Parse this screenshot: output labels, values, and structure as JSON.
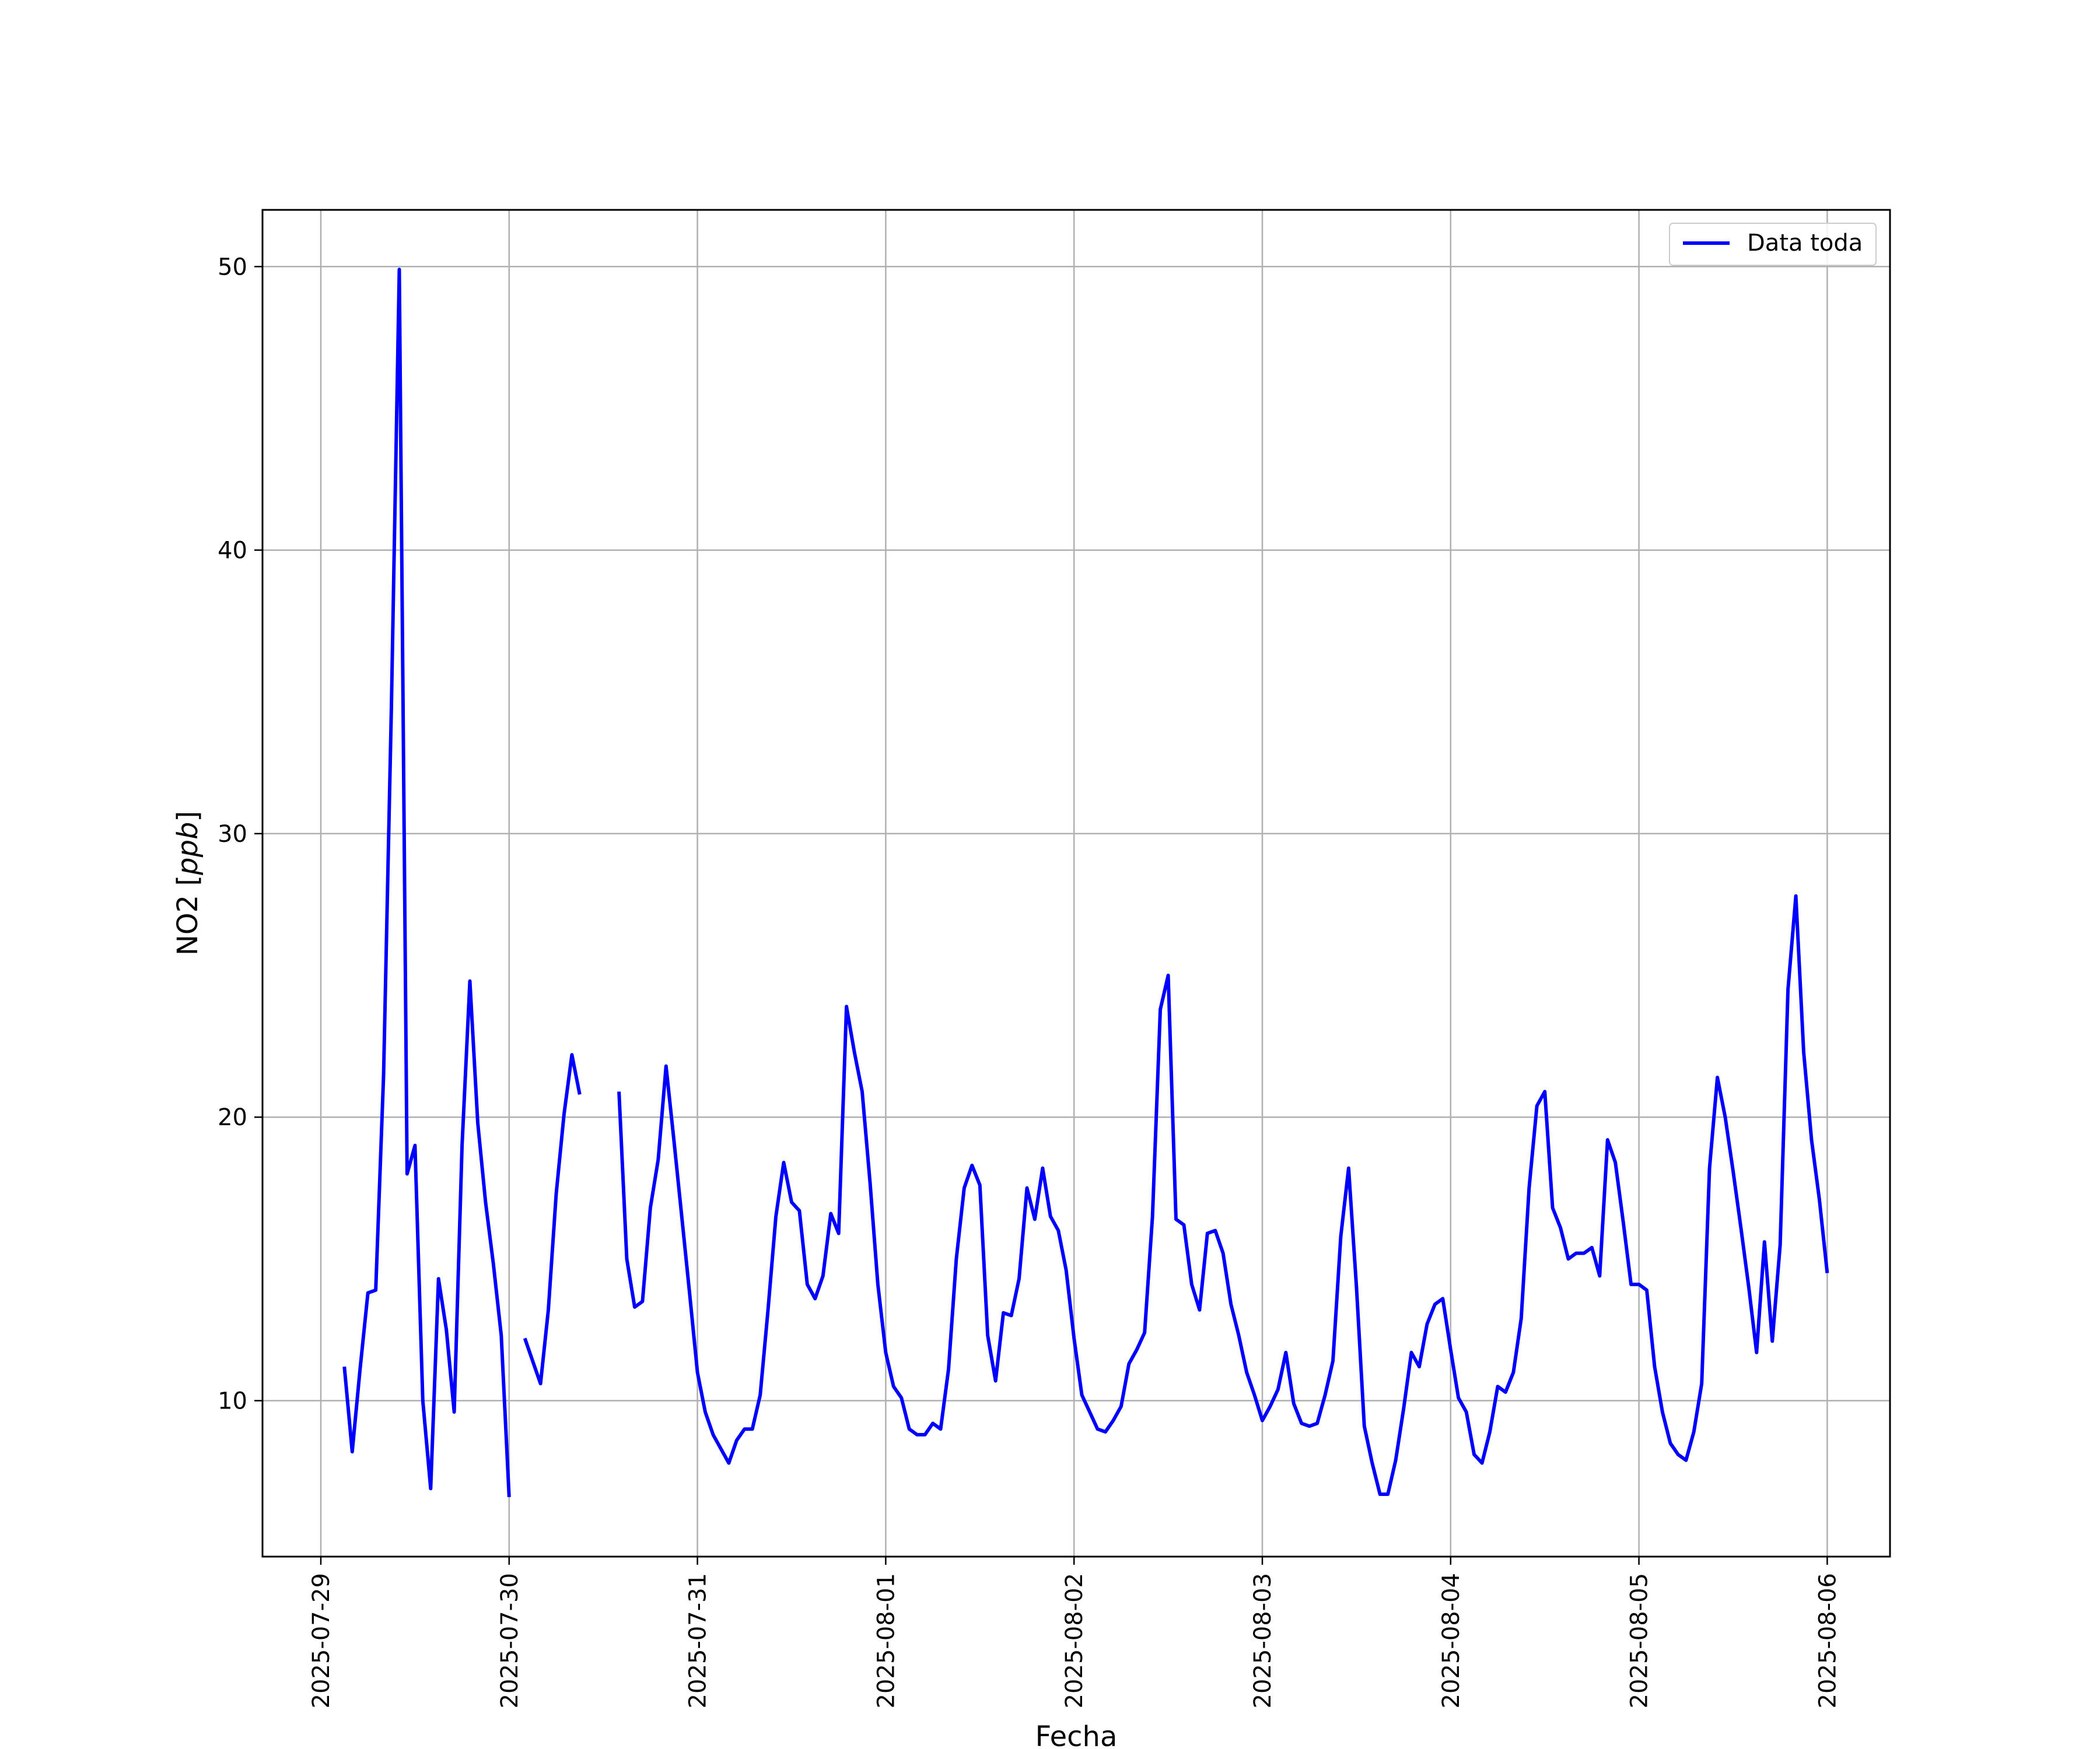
{
  "chart_data": {
    "type": "line",
    "title": "",
    "xlabel": "Fecha",
    "ylabel": "NO2",
    "ylabel_unit": "ppb",
    "grid": true,
    "legend_position": "top-right",
    "xlim": [
      "2025-07-28 16:34",
      "2025-08-06 08:00"
    ],
    "ylim": [
      4.5,
      52
    ],
    "x_ticks": [
      "2025-07-29",
      "2025-07-30",
      "2025-07-31",
      "2025-08-01",
      "2025-08-02",
      "2025-08-03",
      "2025-08-04",
      "2025-08-05",
      "2025-08-06"
    ],
    "y_ticks": [
      10,
      20,
      30,
      40,
      50
    ],
    "series": [
      {
        "name": "Data toda",
        "color": "#0000ff",
        "points": [
          [
            "2025-07-29 03:00",
            11.2
          ],
          [
            "2025-07-29 04:00",
            8.2
          ],
          [
            "2025-07-29 05:00",
            11.1
          ],
          [
            "2025-07-29 06:00",
            13.8
          ],
          [
            "2025-07-29 07:00",
            13.9
          ],
          [
            "2025-07-29 08:00",
            21.5
          ],
          [
            "2025-07-29 09:00",
            34.5
          ],
          [
            "2025-07-29 10:00",
            49.9
          ],
          [
            "2025-07-29 11:00",
            18.0
          ],
          [
            "2025-07-29 12:00",
            19.0
          ],
          [
            "2025-07-29 13:00",
            10.0
          ],
          [
            "2025-07-29 14:00",
            6.9
          ],
          [
            "2025-07-29 15:00",
            14.3
          ],
          [
            "2025-07-29 16:00",
            12.5
          ],
          [
            "2025-07-29 17:00",
            9.6
          ],
          [
            "2025-07-29 18:00",
            19.0
          ],
          [
            "2025-07-29 19:00",
            24.8
          ],
          [
            "2025-07-29 20:00",
            19.8
          ],
          [
            "2025-07-29 21:00",
            17.0
          ],
          [
            "2025-07-29 22:00",
            14.8
          ],
          [
            "2025-07-29 23:00",
            12.3
          ],
          [
            "2025-07-30 00:00",
            6.6
          ],
          null,
          [
            "2025-07-30 02:00",
            12.2
          ],
          [
            "2025-07-30 03:00",
            11.4
          ],
          [
            "2025-07-30 04:00",
            10.6
          ],
          [
            "2025-07-30 05:00",
            13.2
          ],
          [
            "2025-07-30 06:00",
            17.3
          ],
          [
            "2025-07-30 07:00",
            20.1
          ],
          [
            "2025-07-30 08:00",
            22.2
          ],
          [
            "2025-07-30 09:00",
            20.8
          ],
          null,
          [
            "2025-07-30 14:00",
            20.9
          ],
          [
            "2025-07-30 15:00",
            15.0
          ],
          [
            "2025-07-30 16:00",
            13.3
          ],
          [
            "2025-07-30 17:00",
            13.5
          ],
          [
            "2025-07-30 18:00",
            16.8
          ],
          [
            "2025-07-30 19:00",
            18.5
          ],
          [
            "2025-07-30 20:00",
            21.8
          ],
          [
            "2025-07-30 21:00",
            19.2
          ],
          [
            "2025-07-30 22:00",
            16.5
          ],
          [
            "2025-07-30 23:00",
            13.8
          ],
          [
            "2025-07-31 00:00",
            11.0
          ],
          [
            "2025-07-31 01:00",
            9.6
          ],
          [
            "2025-07-31 02:00",
            8.8
          ],
          [
            "2025-07-31 03:00",
            8.3
          ],
          [
            "2025-07-31 04:00",
            7.8
          ],
          [
            "2025-07-31 05:00",
            8.6
          ],
          [
            "2025-07-31 06:00",
            9.0
          ],
          [
            "2025-07-31 07:00",
            9.0
          ],
          [
            "2025-07-31 08:00",
            10.2
          ],
          [
            "2025-07-31 09:00",
            13.2
          ],
          [
            "2025-07-31 10:00",
            16.5
          ],
          [
            "2025-07-31 11:00",
            18.4
          ],
          [
            "2025-07-31 12:00",
            17.0
          ],
          [
            "2025-07-31 13:00",
            16.7
          ],
          [
            "2025-07-31 14:00",
            14.1
          ],
          [
            "2025-07-31 15:00",
            13.6
          ],
          [
            "2025-07-31 16:00",
            14.4
          ],
          [
            "2025-07-31 17:00",
            16.6
          ],
          [
            "2025-07-31 18:00",
            15.9
          ],
          [
            "2025-07-31 19:00",
            23.9
          ],
          [
            "2025-07-31 20:00",
            22.3
          ],
          [
            "2025-07-31 21:00",
            20.9
          ],
          [
            "2025-07-31 22:00",
            17.7
          ],
          [
            "2025-07-31 23:00",
            14.1
          ],
          [
            "2025-08-01 00:00",
            11.7
          ],
          [
            "2025-08-01 01:00",
            10.5
          ],
          [
            "2025-08-01 02:00",
            10.1
          ],
          [
            "2025-08-01 03:00",
            9.0
          ],
          [
            "2025-08-01 04:00",
            8.8
          ],
          [
            "2025-08-01 05:00",
            8.8
          ],
          [
            "2025-08-01 06:00",
            9.2
          ],
          [
            "2025-08-01 07:00",
            9.0
          ],
          [
            "2025-08-01 08:00",
            11.1
          ],
          [
            "2025-08-01 09:00",
            15.0
          ],
          [
            "2025-08-01 10:00",
            17.5
          ],
          [
            "2025-08-01 11:00",
            18.3
          ],
          [
            "2025-08-01 12:00",
            17.6
          ],
          [
            "2025-08-01 13:00",
            12.3
          ],
          [
            "2025-08-01 14:00",
            10.7
          ],
          [
            "2025-08-01 15:00",
            13.1
          ],
          [
            "2025-08-01 16:00",
            13.0
          ],
          [
            "2025-08-01 17:00",
            14.3
          ],
          [
            "2025-08-01 18:00",
            17.5
          ],
          [
            "2025-08-01 19:00",
            16.4
          ],
          [
            "2025-08-01 20:00",
            18.2
          ],
          [
            "2025-08-01 21:00",
            16.5
          ],
          [
            "2025-08-01 22:00",
            16.0
          ],
          [
            "2025-08-01 23:00",
            14.6
          ],
          [
            "2025-08-02 00:00",
            12.2
          ],
          [
            "2025-08-02 01:00",
            10.2
          ],
          [
            "2025-08-02 02:00",
            9.6
          ],
          [
            "2025-08-02 03:00",
            9.0
          ],
          [
            "2025-08-02 04:00",
            8.9
          ],
          [
            "2025-08-02 05:00",
            9.3
          ],
          [
            "2025-08-02 06:00",
            9.8
          ],
          [
            "2025-08-02 07:00",
            11.3
          ],
          [
            "2025-08-02 08:00",
            11.8
          ],
          [
            "2025-08-02 09:00",
            12.4
          ],
          [
            "2025-08-02 10:00",
            16.5
          ],
          [
            "2025-08-02 11:00",
            23.8
          ],
          [
            "2025-08-02 12:00",
            25.0
          ],
          [
            "2025-08-02 13:00",
            16.4
          ],
          [
            "2025-08-02 14:00",
            16.2
          ],
          [
            "2025-08-02 15:00",
            14.1
          ],
          [
            "2025-08-02 16:00",
            13.2
          ],
          [
            "2025-08-02 17:00",
            15.9
          ],
          [
            "2025-08-02 18:00",
            16.0
          ],
          [
            "2025-08-02 19:00",
            15.2
          ],
          [
            "2025-08-02 20:00",
            13.4
          ],
          [
            "2025-08-02 21:00",
            12.3
          ],
          [
            "2025-08-02 22:00",
            11.0
          ],
          [
            "2025-08-02 23:00",
            10.2
          ],
          [
            "2025-08-03 00:00",
            9.3
          ],
          [
            "2025-08-03 01:00",
            9.8
          ],
          [
            "2025-08-03 02:00",
            10.4
          ],
          [
            "2025-08-03 03:00",
            11.7
          ],
          [
            "2025-08-03 04:00",
            9.9
          ],
          [
            "2025-08-03 05:00",
            9.2
          ],
          [
            "2025-08-03 06:00",
            9.1
          ],
          [
            "2025-08-03 07:00",
            9.2
          ],
          [
            "2025-08-03 08:00",
            10.2
          ],
          [
            "2025-08-03 09:00",
            11.4
          ],
          [
            "2025-08-03 10:00",
            15.8
          ],
          [
            "2025-08-03 11:00",
            18.2
          ],
          [
            "2025-08-03 12:00",
            14.0
          ],
          [
            "2025-08-03 13:00",
            9.1
          ],
          [
            "2025-08-03 14:00",
            7.8
          ],
          [
            "2025-08-03 15:00",
            6.7
          ],
          [
            "2025-08-03 16:00",
            6.7
          ],
          [
            "2025-08-03 17:00",
            7.9
          ],
          [
            "2025-08-03 18:00",
            9.7
          ],
          [
            "2025-08-03 19:00",
            11.7
          ],
          [
            "2025-08-03 20:00",
            11.2
          ],
          [
            "2025-08-03 21:00",
            12.7
          ],
          [
            "2025-08-03 22:00",
            13.4
          ],
          [
            "2025-08-03 23:00",
            13.6
          ],
          [
            "2025-08-04 00:00",
            11.8
          ],
          [
            "2025-08-04 01:00",
            10.1
          ],
          [
            "2025-08-04 02:00",
            9.6
          ],
          [
            "2025-08-04 03:00",
            8.1
          ],
          [
            "2025-08-04 04:00",
            7.8
          ],
          [
            "2025-08-04 05:00",
            8.9
          ],
          [
            "2025-08-04 06:00",
            10.5
          ],
          [
            "2025-08-04 07:00",
            10.3
          ],
          [
            "2025-08-04 08:00",
            11.0
          ],
          [
            "2025-08-04 09:00",
            12.9
          ],
          [
            "2025-08-04 10:00",
            17.5
          ],
          [
            "2025-08-04 11:00",
            20.4
          ],
          [
            "2025-08-04 12:00",
            20.9
          ],
          [
            "2025-08-04 13:00",
            16.8
          ],
          [
            "2025-08-04 14:00",
            16.1
          ],
          [
            "2025-08-04 15:00",
            15.0
          ],
          [
            "2025-08-04 16:00",
            15.2
          ],
          [
            "2025-08-04 17:00",
            15.2
          ],
          [
            "2025-08-04 18:00",
            15.4
          ],
          [
            "2025-08-04 19:00",
            14.4
          ],
          [
            "2025-08-04 20:00",
            19.2
          ],
          [
            "2025-08-04 21:00",
            18.4
          ],
          [
            "2025-08-04 22:00",
            16.3
          ],
          [
            "2025-08-04 23:00",
            14.1
          ],
          [
            "2025-08-05 00:00",
            14.1
          ],
          [
            "2025-08-05 01:00",
            13.9
          ],
          [
            "2025-08-05 02:00",
            11.2
          ],
          [
            "2025-08-05 03:00",
            9.6
          ],
          [
            "2025-08-05 04:00",
            8.5
          ],
          [
            "2025-08-05 05:00",
            8.1
          ],
          [
            "2025-08-05 06:00",
            7.9
          ],
          [
            "2025-08-05 07:00",
            8.9
          ],
          [
            "2025-08-05 08:00",
            10.6
          ],
          [
            "2025-08-05 09:00",
            18.2
          ],
          [
            "2025-08-05 10:00",
            21.4
          ],
          [
            "2025-08-05 11:00",
            20.0
          ],
          [
            "2025-08-05 12:00",
            18.1
          ],
          [
            "2025-08-05 13:00",
            16.1
          ],
          [
            "2025-08-05 14:00",
            14.0
          ],
          [
            "2025-08-05 15:00",
            11.7
          ],
          [
            "2025-08-05 16:00",
            15.6
          ],
          [
            "2025-08-05 17:00",
            12.1
          ],
          [
            "2025-08-05 18:00",
            15.5
          ],
          [
            "2025-08-05 19:00",
            24.5
          ],
          [
            "2025-08-05 20:00",
            27.8
          ],
          [
            "2025-08-05 21:00",
            22.3
          ],
          [
            "2025-08-05 22:00",
            19.2
          ],
          [
            "2025-08-05 23:00",
            17.1
          ],
          [
            "2025-08-06 00:00",
            14.5
          ]
        ]
      }
    ]
  }
}
